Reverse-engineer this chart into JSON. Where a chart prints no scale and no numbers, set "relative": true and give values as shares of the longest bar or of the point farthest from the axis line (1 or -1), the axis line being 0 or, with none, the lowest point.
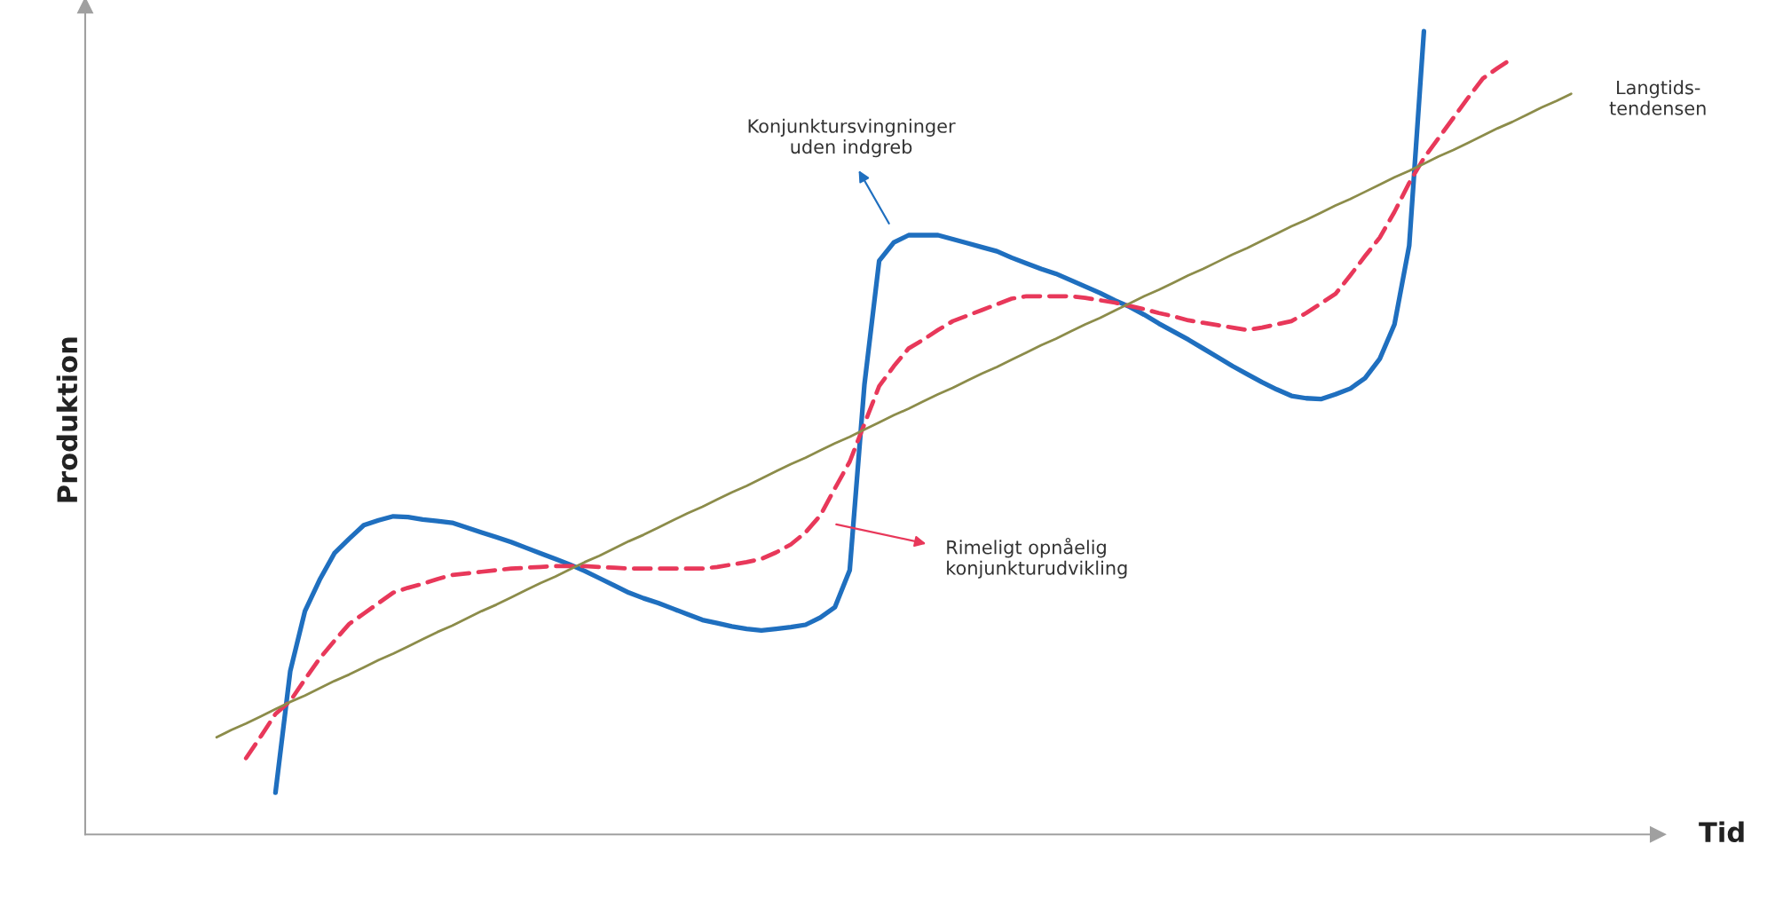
{
  "chart_data": {
    "type": "line",
    "relative": true,
    "xlabel": "Tid",
    "ylabel": "Produktion",
    "legend": false,
    "marker": "none",
    "categories": [
      null,
      null,
      null,
      null,
      null,
      null,
      null,
      null,
      null,
      null,
      null,
      null,
      null,
      null,
      null,
      null,
      null,
      null,
      null,
      null,
      null,
      null,
      null,
      null,
      null,
      null,
      null,
      null,
      null,
      null,
      null,
      null,
      null,
      null,
      null,
      null,
      null,
      null,
      null,
      null,
      null,
      null,
      null,
      null,
      null,
      null,
      null,
      null,
      null,
      null,
      null,
      null,
      null,
      null,
      null,
      null,
      null,
      null,
      null,
      null,
      null,
      null,
      null,
      null,
      null,
      null,
      null,
      null,
      null,
      null,
      null,
      null,
      null,
      null,
      null,
      null,
      null,
      null,
      null,
      null,
      null,
      null,
      null,
      null,
      null,
      null,
      null,
      null,
      null,
      null,
      null,
      null,
      null
    ],
    "series": [
      {
        "color": "#1f6fbf",
        "line_style": "solid",
        "values": [
          null,
          null,
          null,
          null,
          0.052,
          0.203,
          0.278,
          0.317,
          0.35,
          0.368,
          0.385,
          0.391,
          0.396,
          0.395,
          0.392,
          0.39,
          0.388,
          0.382,
          0.376,
          0.37,
          0.364,
          0.357,
          0.35,
          0.343,
          0.336,
          0.328,
          0.319,
          0.31,
          0.301,
          0.294,
          0.288,
          0.281,
          0.274,
          0.267,
          0.263,
          0.259,
          0.256,
          0.254,
          0.256,
          0.258,
          0.261,
          0.27,
          0.283,
          0.329,
          0.56,
          0.714,
          0.737,
          0.746,
          0.746,
          0.746,
          0.741,
          0.736,
          0.731,
          0.726,
          0.718,
          0.711,
          0.704,
          0.698,
          0.69,
          0.682,
          0.674,
          0.665,
          0.657,
          0.647,
          0.636,
          0.626,
          0.616,
          0.605,
          0.594,
          0.583,
          0.573,
          0.563,
          0.554,
          0.546,
          0.543,
          0.542,
          0.548,
          0.555,
          0.568,
          0.592,
          0.635,
          0.733,
          1.0,
          null,
          null,
          null,
          null,
          null,
          null,
          null,
          null,
          null,
          null
        ]
      },
      {
        "color": "#e8385a",
        "line_style": "dashed",
        "values": [
          null,
          null,
          0.095,
          0.122,
          0.15,
          0.166,
          0.193,
          0.219,
          0.241,
          0.262,
          0.275,
          0.288,
          0.301,
          0.307,
          0.312,
          0.318,
          0.323,
          0.325,
          0.327,
          0.329,
          0.331,
          0.332,
          0.333,
          0.334,
          0.334,
          0.334,
          0.333,
          0.332,
          0.331,
          0.331,
          0.331,
          0.331,
          0.331,
          0.331,
          0.333,
          0.336,
          0.339,
          0.343,
          0.351,
          0.361,
          0.376,
          0.397,
          0.431,
          0.464,
          0.511,
          0.558,
          0.583,
          0.605,
          0.616,
          0.628,
          0.639,
          0.646,
          0.653,
          0.66,
          0.667,
          0.67,
          0.67,
          0.67,
          0.67,
          0.668,
          0.665,
          0.662,
          0.658,
          0.654,
          0.649,
          0.645,
          0.64,
          0.637,
          0.634,
          0.631,
          0.628,
          0.631,
          0.635,
          0.639,
          0.649,
          0.661,
          0.673,
          0.696,
          0.72,
          0.743,
          0.775,
          0.811,
          0.842,
          0.867,
          0.892,
          0.917,
          0.941,
          0.954,
          0.966,
          null,
          null,
          null,
          null
        ]
      },
      {
        "color": "#8c8c4a",
        "line_style": "solid",
        "values": [
          0.121,
          0.13,
          0.138,
          0.147,
          0.156,
          0.165,
          0.173,
          0.182,
          0.191,
          0.199,
          0.208,
          0.217,
          0.225,
          0.234,
          0.243,
          0.252,
          0.26,
          0.269,
          0.278,
          0.286,
          0.295,
          0.304,
          0.313,
          0.321,
          0.33,
          0.339,
          0.347,
          0.356,
          0.365,
          0.373,
          0.382,
          0.391,
          0.4,
          0.408,
          0.417,
          0.426,
          0.434,
          0.443,
          0.452,
          0.461,
          0.469,
          0.478,
          0.487,
          0.495,
          0.504,
          0.513,
          0.522,
          0.53,
          0.539,
          0.548,
          0.556,
          0.565,
          0.574,
          0.582,
          0.591,
          0.6,
          0.609,
          0.617,
          0.626,
          0.635,
          0.643,
          0.652,
          0.661,
          0.67,
          0.678,
          0.687,
          0.696,
          0.704,
          0.713,
          0.722,
          0.73,
          0.739,
          0.748,
          0.757,
          0.765,
          0.774,
          0.783,
          0.791,
          0.8,
          0.809,
          0.818,
          0.826,
          0.835,
          0.844,
          0.852,
          0.861,
          0.87,
          0.879,
          0.887,
          0.896,
          0.905,
          0.913,
          0.922
        ]
      }
    ],
    "annotations": [
      "Konjunktursvingninger\nuden indgreb",
      "Rimeligt opnåelig\nkonjunkturudvikling",
      "Langtids-\ntendensen"
    ]
  }
}
